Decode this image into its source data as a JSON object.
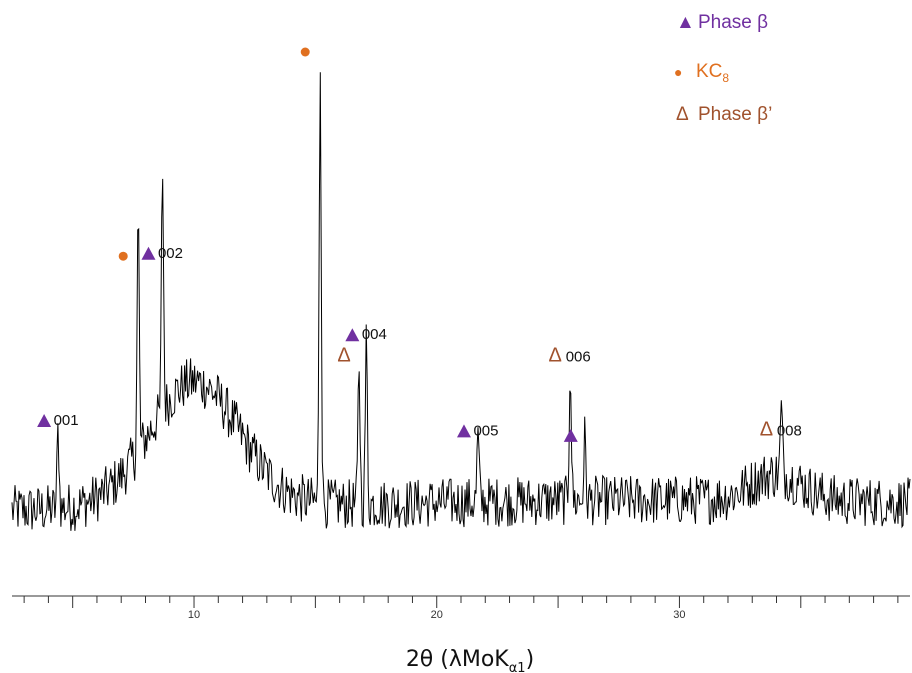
{
  "colors": {
    "trace": "#000000",
    "phase_beta": "#7030a0",
    "kc8": "#e07020",
    "phase_beta_prime": "#a0522d",
    "axis": "#333333"
  },
  "legend": {
    "phase_beta": {
      "symbol": "▲",
      "label": "Phase β"
    },
    "kc8": {
      "symbol": "●",
      "label": "KC",
      "sub": "8"
    },
    "phase_beta_prime": {
      "symbol": "Δ",
      "label": "Phase β’"
    }
  },
  "chart_data": {
    "type": "line",
    "title": "",
    "xlabel": "2θ (λMoK",
    "xlabel_sub": "α1",
    "xlabel_close": ")",
    "ylabel": "",
    "xlim": [
      2.5,
      39.5
    ],
    "x_ticks_labeled": [
      "10",
      "20",
      "30"
    ],
    "x_tick_values": [
      10,
      20,
      30
    ],
    "grid": false,
    "peaks": [
      {
        "x": 4.4,
        "height": 0.52,
        "label": "001",
        "marker": "phase_beta"
      },
      {
        "x": 7.7,
        "height": 1.62,
        "label": "",
        "marker": "kc8"
      },
      {
        "x": 8.7,
        "height": 1.65,
        "label": "002",
        "marker": "phase_beta"
      },
      {
        "x": 15.2,
        "height": 3.0,
        "label": "",
        "marker": "kc8"
      },
      {
        "x": 16.8,
        "height": 0.95,
        "label": "",
        "marker": "phase_beta_prime"
      },
      {
        "x": 17.1,
        "height": 1.1,
        "label": "004",
        "marker": "phase_beta"
      },
      {
        "x": 21.7,
        "height": 0.45,
        "label": "005",
        "marker": "phase_beta"
      },
      {
        "x": 25.5,
        "height": 0.95,
        "label": "006",
        "marker": "phase_beta_prime"
      },
      {
        "x": 26.1,
        "height": 0.42,
        "label": "",
        "marker": "phase_beta"
      },
      {
        "x": 34.2,
        "height": 0.45,
        "label": "008",
        "marker": "phase_beta_prime"
      }
    ]
  }
}
